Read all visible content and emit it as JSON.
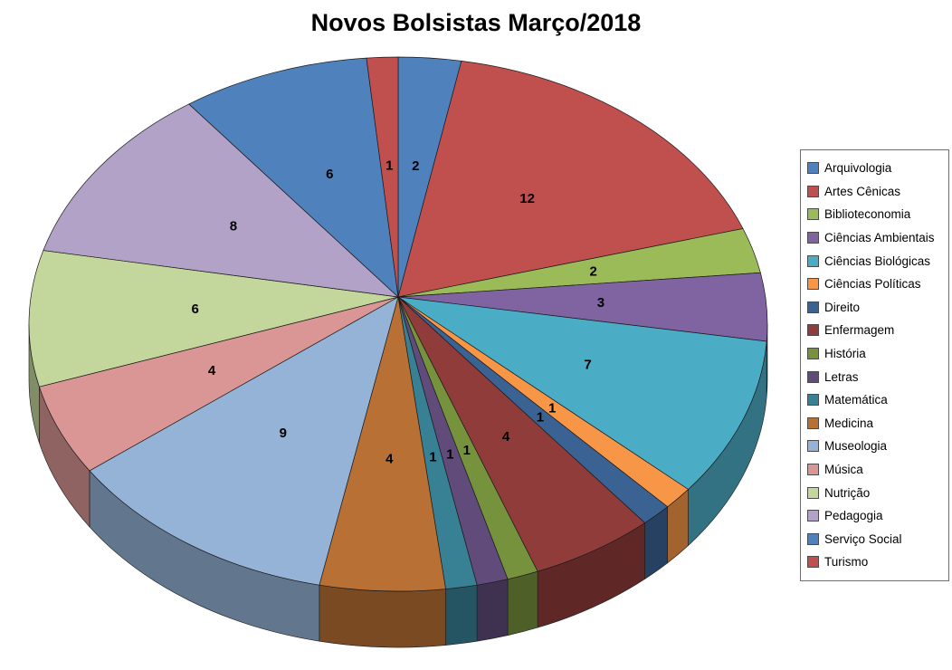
{
  "page": {
    "background_color": "#FFFFFF"
  },
  "chart_data": {
    "type": "pie",
    "style": "3d",
    "title": "Novos Bolsistas Março/2018",
    "categories": [
      "Arquivologia",
      "Artes Cênicas",
      "Biblioteconomia",
      "Ciências Ambientais",
      "Ciências Biológicas",
      "Ciências Políticas",
      "Direito",
      "Enfermagem",
      "História",
      "Letras",
      "Matemática",
      "Medicina",
      "Museologia",
      "Música",
      "Nutrição",
      "Pedagogia",
      "Serviço Social",
      "Turismo"
    ],
    "values": [
      2,
      12,
      2,
      3,
      7,
      1,
      1,
      4,
      1,
      1,
      1,
      4,
      9,
      4,
      6,
      8,
      6,
      1
    ],
    "colors": [
      "#4F81BD",
      "#C0504D",
      "#9BBB59",
      "#8064A2",
      "#4BACC6",
      "#F79646",
      "#3A6293",
      "#903C3A",
      "#76923C",
      "#604B7A",
      "#388194",
      "#B97034",
      "#95B3D7",
      "#D99694",
      "#C3D69B",
      "#B3A2C7",
      "#4F81BD",
      "#C0504D"
    ],
    "total": 73,
    "data_labels": "value",
    "legend_position": "right",
    "start_angle_deg": 0,
    "direction": "clockwise"
  }
}
